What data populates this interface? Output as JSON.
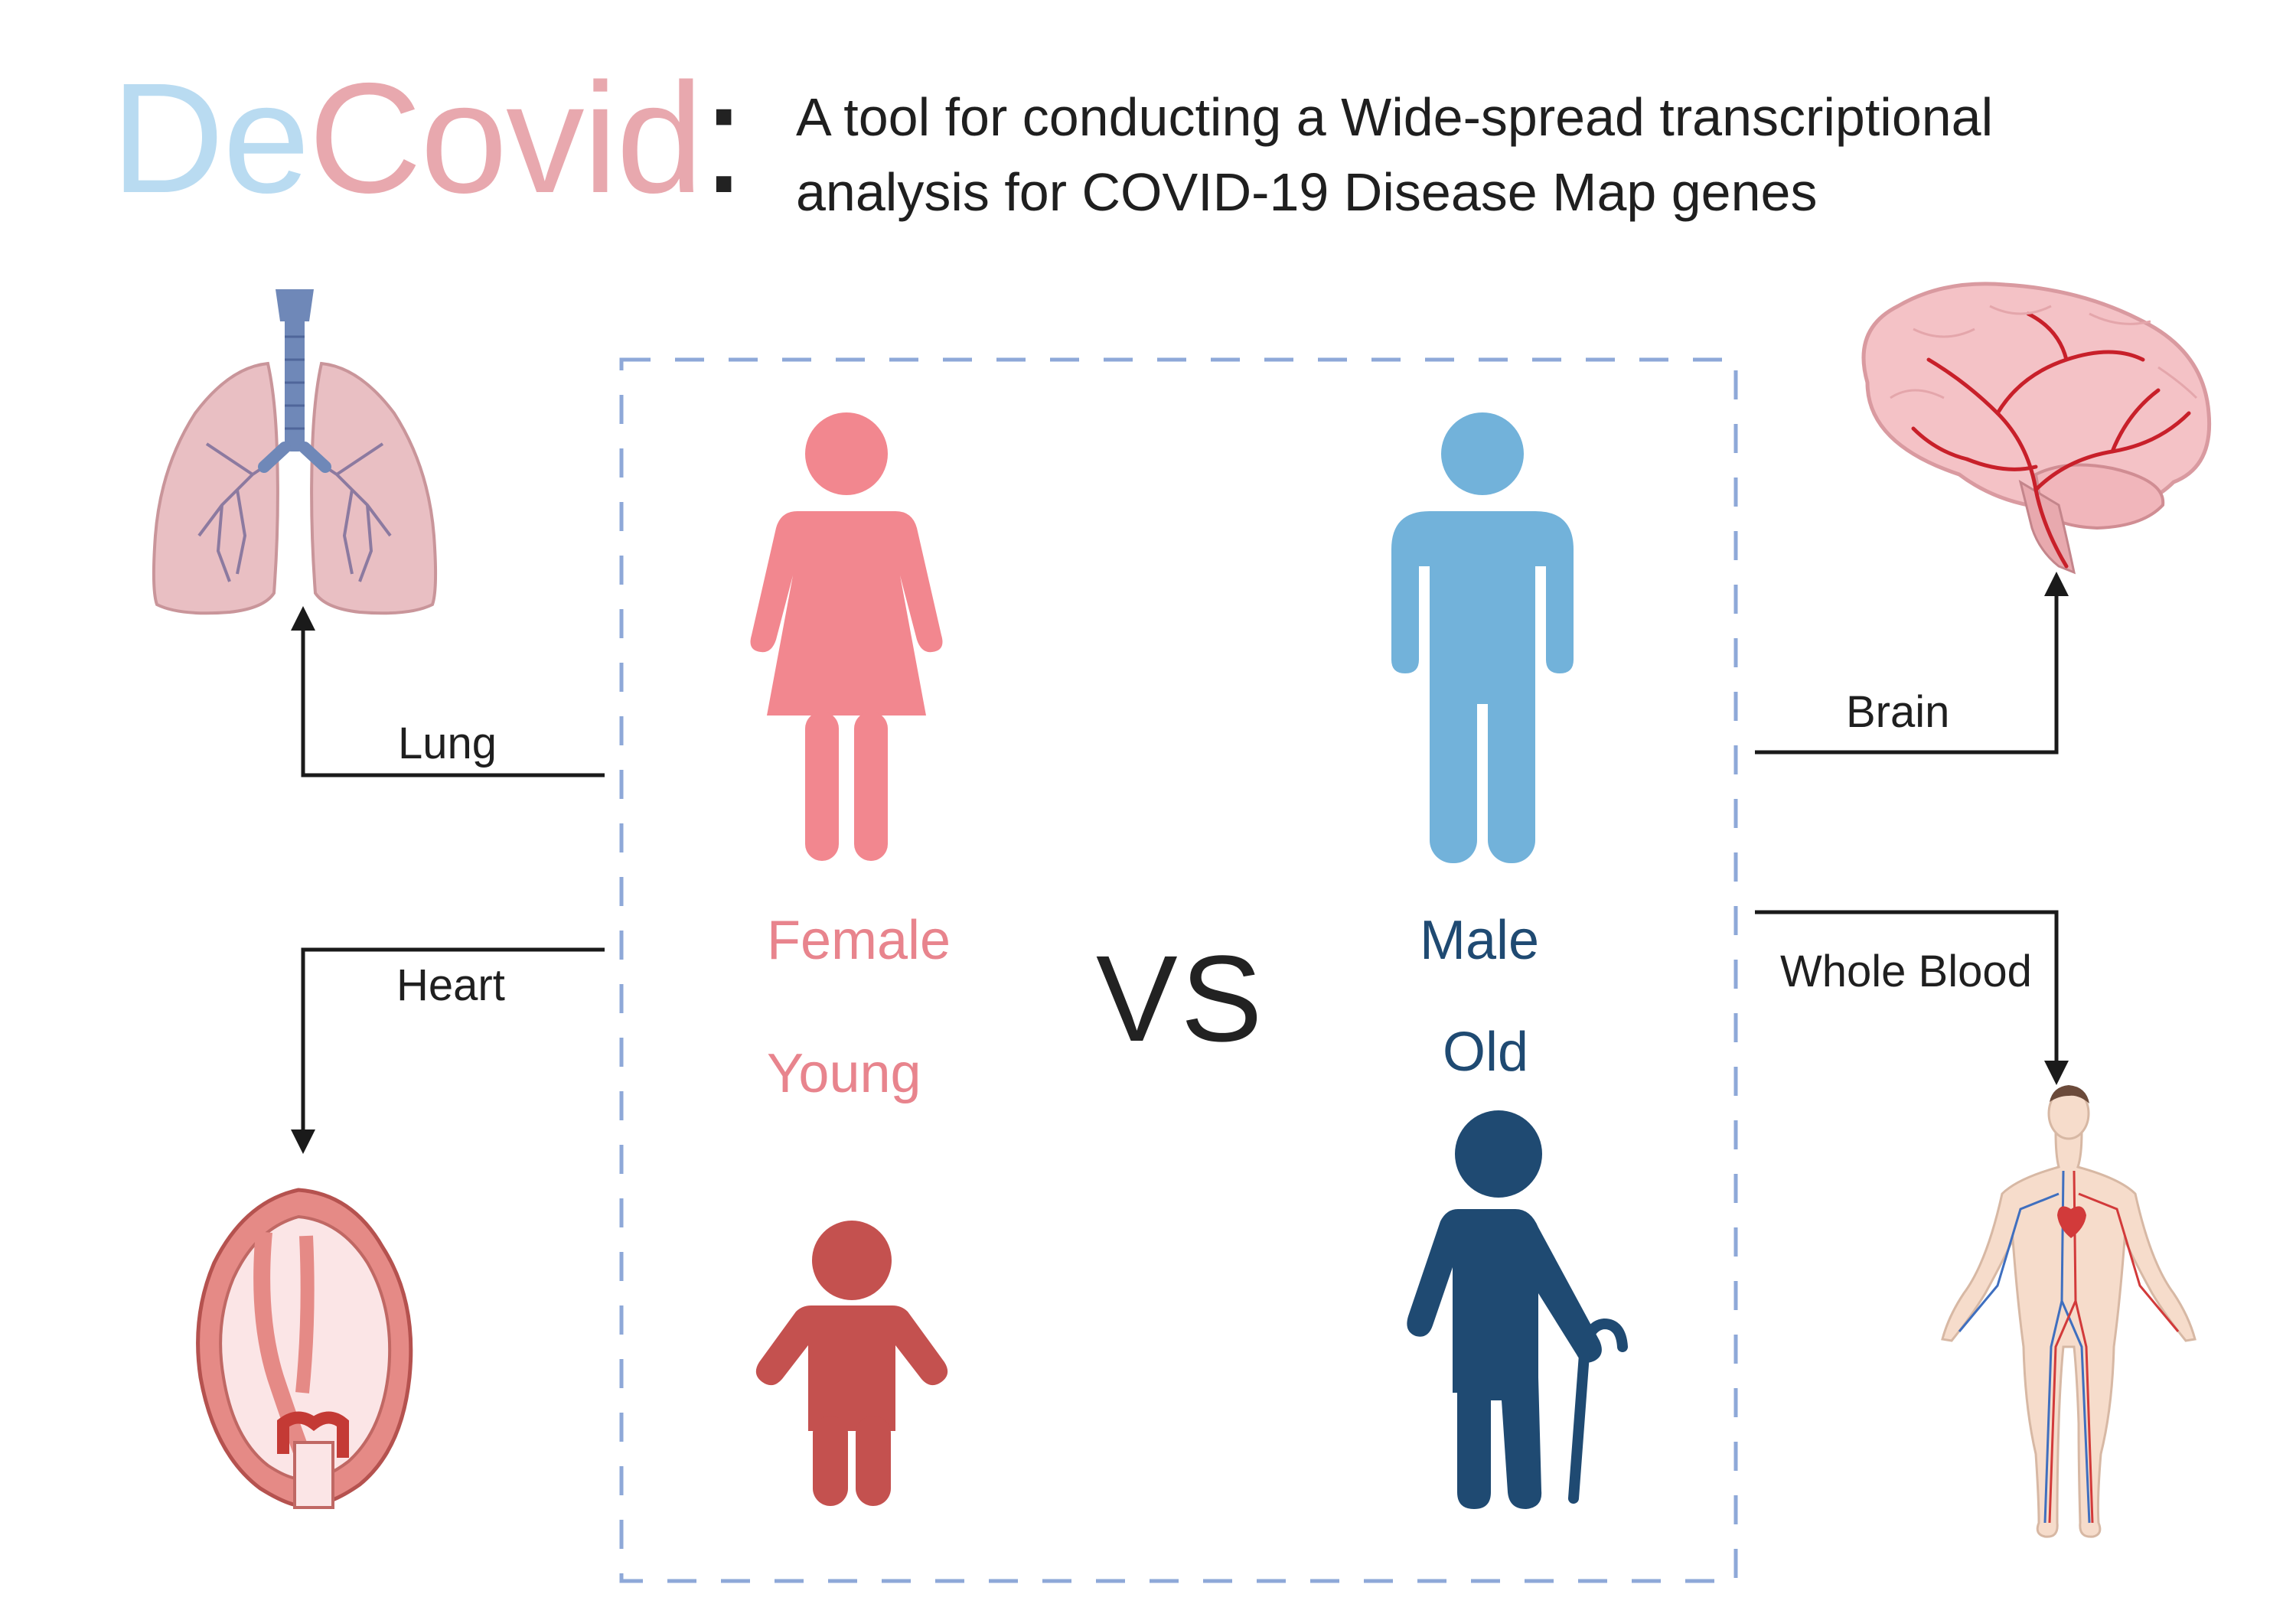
{
  "header": {
    "logo_part1": "De",
    "logo_part2": "Covid",
    "logo_colon": ":",
    "subtitle_line1": "A tool for conducting a Wide-spread transcriptional",
    "subtitle_line2": "analysis for COVID-19 Disease Map genes"
  },
  "comparison": {
    "left_group": {
      "sex": "Female",
      "age": "Young",
      "color_sex": "#e8848d",
      "color_age": "#c4514f"
    },
    "separator": "VS",
    "right_group": {
      "sex": "Male",
      "age": "Old",
      "color_sex": "#72b2da",
      "color_age": "#1f4a72"
    }
  },
  "tissues": [
    {
      "label": "Lung",
      "icon": "lungs-icon"
    },
    {
      "label": "Heart",
      "icon": "heart-icon"
    },
    {
      "label": "Brain",
      "icon": "brain-icon"
    },
    {
      "label": "Whole Blood",
      "icon": "circulatory-system-icon"
    }
  ],
  "colors": {
    "dashed_box": "#8ea8d8",
    "arrow": "#1a1a1a"
  }
}
